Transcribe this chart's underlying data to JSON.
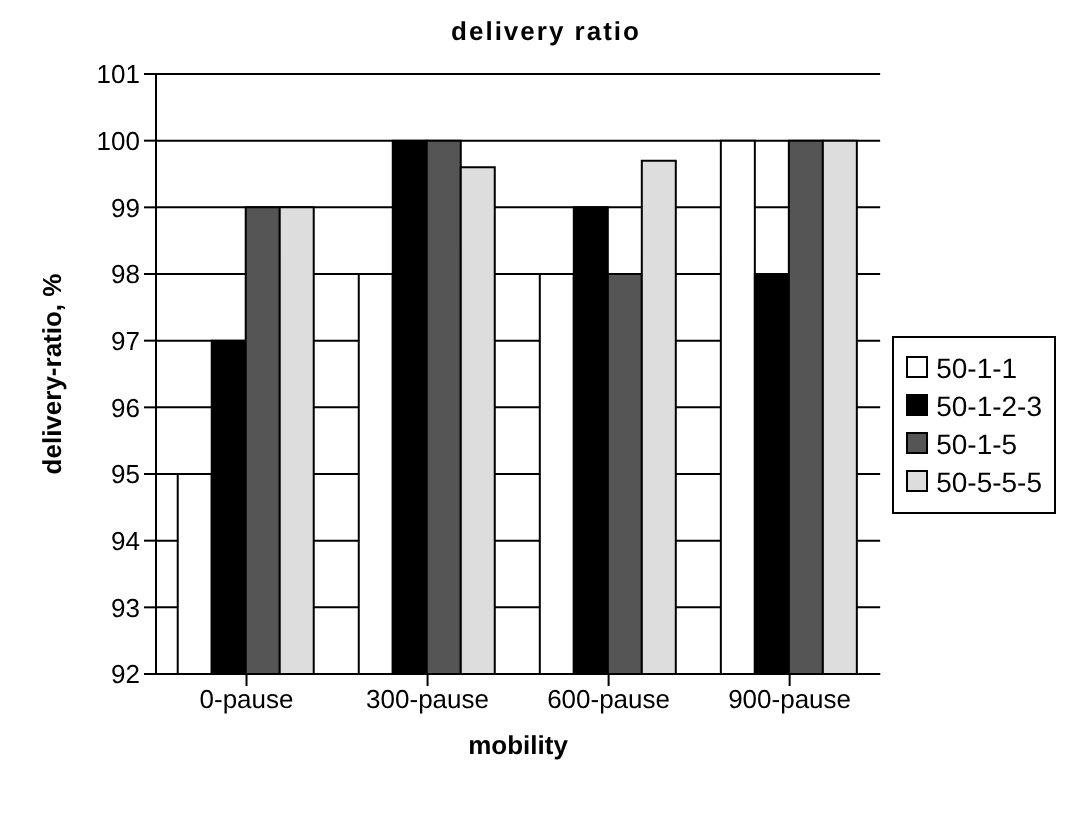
{
  "chart_data": {
    "type": "bar",
    "title": "delivery ratio",
    "xlabel": "mobility",
    "ylabel": "delivery-ratio, %",
    "categories": [
      "0-pause",
      "300-pause",
      "600-pause",
      "900-pause"
    ],
    "series": [
      {
        "name": "50-1-1",
        "color": "#ffffff",
        "values": [
          95,
          98,
          98,
          100
        ]
      },
      {
        "name": "50-1-2-3",
        "color": "#000000",
        "values": [
          97,
          100,
          99,
          98
        ]
      },
      {
        "name": "50-1-5",
        "color": "#555555",
        "values": [
          99,
          100,
          98,
          100
        ]
      },
      {
        "name": "50-5-5-5",
        "color": "#dddddd",
        "values": [
          99,
          99.6,
          99.7,
          100
        ]
      }
    ],
    "ylim": [
      92,
      101
    ],
    "yticks": [
      92,
      93,
      94,
      95,
      96,
      97,
      98,
      99,
      100,
      101
    ],
    "grid": "y",
    "legend": "right"
  }
}
